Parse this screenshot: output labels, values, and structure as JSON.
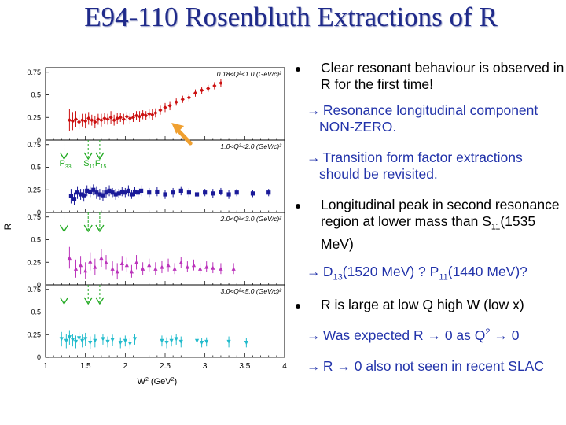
{
  "slide": {
    "title": "E94-110 Rosenbluth Extractions of R",
    "bullets": [
      {
        "type": "bullet",
        "text": "Clear resonant behaviour is observed in R for the first time!"
      },
      {
        "type": "sub",
        "text": "Resonance longitudinal component NON-ZERO."
      },
      {
        "type": "sub",
        "text": "Transition form factor extractions should be revisited."
      },
      {
        "type": "bullet",
        "text_a": "Longitudinal peak in second resonance region at lower mass than S",
        "sub": "11",
        "text_b": "(1535 MeV)"
      },
      {
        "type": "sub",
        "text_a": "D",
        "sub1": "13",
        "text_b": "(1520 MeV) ?  P",
        "sub2": "11",
        "text_c": "(1440 MeV)?"
      },
      {
        "type": "bullet",
        "text": "R is large at low Q high W (low x)"
      },
      {
        "type": "sub",
        "text_a": "Was expected R → 0 as Q",
        "sup": "2",
        "text_b": " → 0"
      },
      {
        "type": "sub",
        "text": "R → 0 also not seen in recent SLAC"
      }
    ],
    "arrow_glyph": "→"
  },
  "chart_data": {
    "type": "scatter",
    "ylabel": "R",
    "xlabel": "W",
    "xlabel_sup": "2",
    "xlabel_units": " (GeV",
    "xlabel_units_sup": "2",
    "xlabel_units_close": ")",
    "xlim": [
      1.0,
      4.0
    ],
    "xticks": [
      "1",
      "1.5",
      "2",
      "2.5",
      "3",
      "3.5",
      "4"
    ],
    "yticks": [
      "0",
      "0.25",
      "0.5",
      "0.75"
    ],
    "resonance_labels": [
      {
        "text": "P",
        "sub": "33",
        "x": 1.232
      },
      {
        "text": "S",
        "sub": "11",
        "x": 1.535
      },
      {
        "text": "F",
        "sub": "15",
        "x": 1.68
      }
    ],
    "resonance_marker_x": [
      1.232,
      1.535,
      1.68
    ],
    "highlight_arrow": {
      "color": "#f0a030",
      "points_to_x": 2.6
    },
    "panels": [
      {
        "label": "0.18<Q²<1.0 (GeV/c)²",
        "ylim": [
          0,
          0.8
        ],
        "color": "#cc1111",
        "marker": "diamond",
        "points": [
          [
            1.3,
            0.22
          ],
          [
            1.34,
            0.21
          ],
          [
            1.38,
            0.23
          ],
          [
            1.42,
            0.2
          ],
          [
            1.46,
            0.22
          ],
          [
            1.5,
            0.21
          ],
          [
            1.54,
            0.24
          ],
          [
            1.58,
            0.22
          ],
          [
            1.62,
            0.2
          ],
          [
            1.66,
            0.23
          ],
          [
            1.7,
            0.22
          ],
          [
            1.74,
            0.24
          ],
          [
            1.78,
            0.23
          ],
          [
            1.82,
            0.25
          ],
          [
            1.86,
            0.22
          ],
          [
            1.9,
            0.24
          ],
          [
            1.94,
            0.25
          ],
          [
            1.98,
            0.23
          ],
          [
            2.02,
            0.26
          ],
          [
            2.06,
            0.24
          ],
          [
            2.1,
            0.25
          ],
          [
            2.14,
            0.27
          ],
          [
            2.18,
            0.26
          ],
          [
            2.22,
            0.28
          ],
          [
            2.26,
            0.27
          ],
          [
            2.3,
            0.29
          ],
          [
            2.34,
            0.28
          ],
          [
            2.38,
            0.3
          ],
          [
            2.44,
            0.33
          ],
          [
            2.5,
            0.36
          ],
          [
            2.56,
            0.38
          ],
          [
            2.64,
            0.42
          ],
          [
            2.72,
            0.45
          ],
          [
            2.8,
            0.47
          ],
          [
            2.88,
            0.52
          ],
          [
            2.96,
            0.55
          ],
          [
            3.04,
            0.57
          ],
          [
            3.12,
            0.6
          ],
          [
            3.2,
            0.63
          ]
        ],
        "errors": [
          0.12,
          0.1,
          0.09,
          0.08,
          0.07,
          0.08,
          0.07,
          0.06,
          0.07,
          0.06,
          0.07,
          0.06,
          0.06,
          0.07,
          0.06,
          0.06,
          0.05,
          0.06,
          0.05,
          0.06,
          0.05,
          0.05,
          0.06,
          0.05,
          0.05,
          0.05,
          0.06,
          0.05,
          0.05,
          0.05,
          0.05,
          0.04,
          0.04,
          0.04,
          0.04,
          0.04,
          0.04,
          0.04,
          0.04
        ]
      },
      {
        "label": "1.0<Q²<2.0 (GeV/c)²",
        "ylim": [
          0,
          0.8
        ],
        "color": "#1a1a99",
        "marker": "square",
        "points": [
          [
            1.32,
            0.18
          ],
          [
            1.36,
            0.15
          ],
          [
            1.4,
            0.22
          ],
          [
            1.44,
            0.2
          ],
          [
            1.48,
            0.19
          ],
          [
            1.52,
            0.24
          ],
          [
            1.56,
            0.23
          ],
          [
            1.6,
            0.25
          ],
          [
            1.64,
            0.22
          ],
          [
            1.68,
            0.2
          ],
          [
            1.72,
            0.19
          ],
          [
            1.76,
            0.22
          ],
          [
            1.8,
            0.24
          ],
          [
            1.84,
            0.22
          ],
          [
            1.88,
            0.2
          ],
          [
            1.92,
            0.21
          ],
          [
            1.96,
            0.23
          ],
          [
            2.0,
            0.22
          ],
          [
            2.04,
            0.24
          ],
          [
            2.08,
            0.2
          ],
          [
            2.12,
            0.23
          ],
          [
            2.16,
            0.22
          ],
          [
            2.2,
            0.24
          ],
          [
            2.3,
            0.22
          ],
          [
            2.4,
            0.23
          ],
          [
            2.5,
            0.2
          ],
          [
            2.6,
            0.22
          ],
          [
            2.7,
            0.24
          ],
          [
            2.8,
            0.22
          ],
          [
            2.9,
            0.2
          ],
          [
            3.0,
            0.22
          ],
          [
            3.1,
            0.21
          ],
          [
            3.2,
            0.23
          ],
          [
            3.3,
            0.2
          ],
          [
            3.4,
            0.22
          ],
          [
            3.6,
            0.21
          ],
          [
            3.8,
            0.22
          ]
        ],
        "errors": [
          0.08,
          0.07,
          0.07,
          0.06,
          0.07,
          0.06,
          0.06,
          0.06,
          0.07,
          0.06,
          0.06,
          0.06,
          0.06,
          0.05,
          0.06,
          0.05,
          0.05,
          0.05,
          0.06,
          0.05,
          0.05,
          0.05,
          0.06,
          0.05,
          0.05,
          0.05,
          0.05,
          0.05,
          0.05,
          0.05,
          0.04,
          0.05,
          0.04,
          0.05,
          0.04,
          0.04,
          0.04
        ]
      },
      {
        "label": "2.0<Q²<3.0 (GeV/c)²",
        "ylim": [
          0,
          0.8
        ],
        "color": "#bb33bb",
        "marker": "triangle",
        "points": [
          [
            1.3,
            0.3
          ],
          [
            1.38,
            0.18
          ],
          [
            1.44,
            0.22
          ],
          [
            1.5,
            0.16
          ],
          [
            1.56,
            0.26
          ],
          [
            1.62,
            0.2
          ],
          [
            1.7,
            0.3
          ],
          [
            1.76,
            0.25
          ],
          [
            1.84,
            0.18
          ],
          [
            1.9,
            0.15
          ],
          [
            1.96,
            0.24
          ],
          [
            2.02,
            0.22
          ],
          [
            2.08,
            0.15
          ],
          [
            2.14,
            0.25
          ],
          [
            2.22,
            0.18
          ],
          [
            2.3,
            0.22
          ],
          [
            2.38,
            0.18
          ],
          [
            2.46,
            0.2
          ],
          [
            2.54,
            0.22
          ],
          [
            2.62,
            0.18
          ],
          [
            2.7,
            0.25
          ],
          [
            2.78,
            0.2
          ],
          [
            2.86,
            0.22
          ],
          [
            2.94,
            0.18
          ],
          [
            3.02,
            0.2
          ],
          [
            3.1,
            0.19
          ],
          [
            3.2,
            0.18
          ],
          [
            3.36,
            0.18
          ]
        ],
        "errors": [
          0.12,
          0.1,
          0.1,
          0.09,
          0.1,
          0.09,
          0.1,
          0.08,
          0.08,
          0.09,
          0.08,
          0.08,
          0.07,
          0.08,
          0.07,
          0.07,
          0.07,
          0.07,
          0.07,
          0.06,
          0.06,
          0.06,
          0.06,
          0.06,
          0.06,
          0.06,
          0.06,
          0.06
        ]
      },
      {
        "label": "3.0<Q²<5.0 (GeV/c)²",
        "ylim": [
          0,
          0.8
        ],
        "color": "#22bbcc",
        "marker": "triangle-down",
        "points": [
          [
            1.2,
            0.2
          ],
          [
            1.26,
            0.18
          ],
          [
            1.3,
            0.22
          ],
          [
            1.34,
            0.19
          ],
          [
            1.38,
            0.17
          ],
          [
            1.42,
            0.21
          ],
          [
            1.46,
            0.18
          ],
          [
            1.5,
            0.2
          ],
          [
            1.56,
            0.16
          ],
          [
            1.62,
            0.18
          ],
          [
            1.72,
            0.2
          ],
          [
            1.78,
            0.17
          ],
          [
            1.84,
            0.19
          ],
          [
            1.94,
            0.16
          ],
          [
            2.0,
            0.18
          ],
          [
            2.06,
            0.15
          ],
          [
            2.12,
            0.2
          ],
          [
            2.46,
            0.18
          ],
          [
            2.52,
            0.16
          ],
          [
            2.58,
            0.18
          ],
          [
            2.64,
            0.2
          ],
          [
            2.7,
            0.17
          ],
          [
            2.9,
            0.18
          ],
          [
            2.96,
            0.16
          ],
          [
            3.02,
            0.17
          ],
          [
            3.3,
            0.17
          ],
          [
            3.52,
            0.16
          ]
        ],
        "errors": [
          0.08,
          0.08,
          0.08,
          0.07,
          0.07,
          0.07,
          0.07,
          0.07,
          0.07,
          0.07,
          0.06,
          0.06,
          0.06,
          0.06,
          0.06,
          0.06,
          0.06,
          0.06,
          0.06,
          0.06,
          0.06,
          0.06,
          0.06,
          0.05,
          0.05,
          0.06,
          0.05
        ]
      }
    ]
  }
}
